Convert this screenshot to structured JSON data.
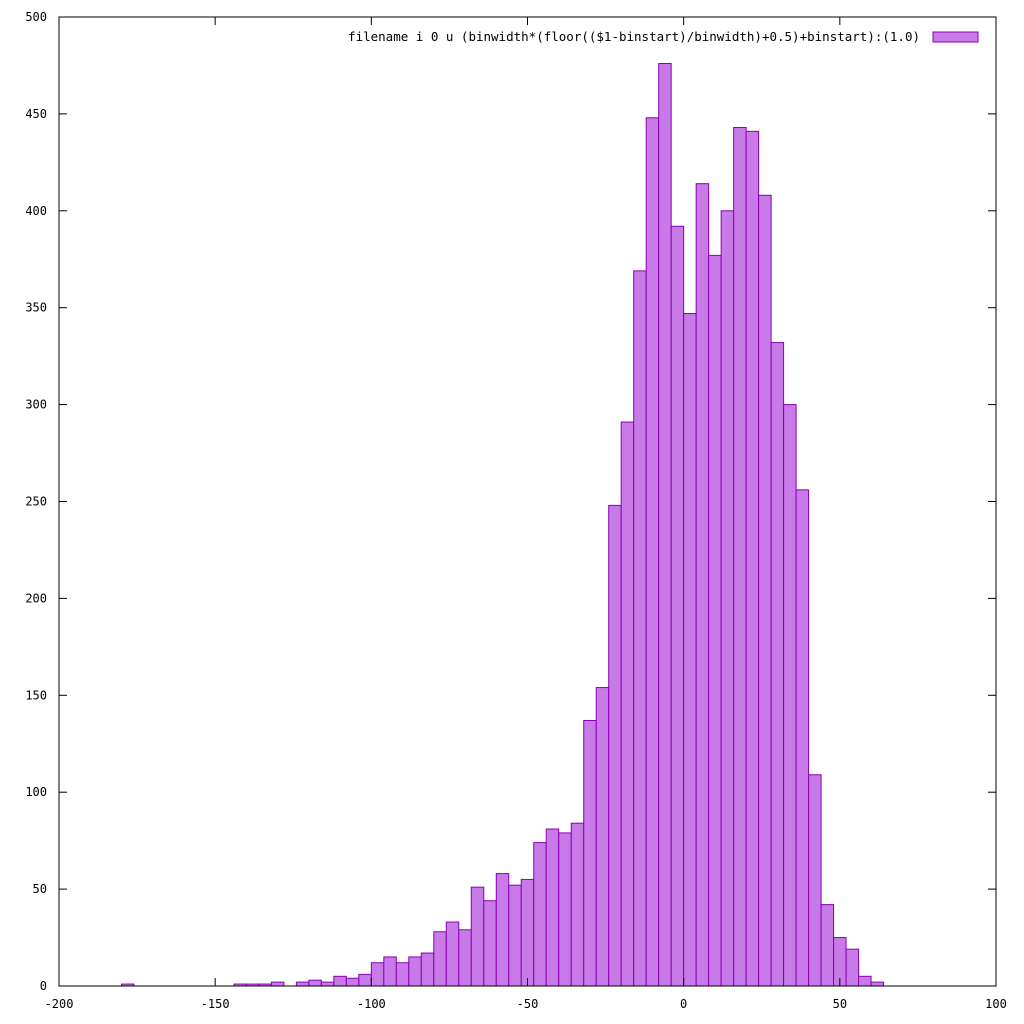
{
  "chart_data": {
    "type": "bar",
    "xlim": [
      -200,
      100
    ],
    "ylim": [
      0,
      500
    ],
    "x_ticks": [
      -200,
      -150,
      -100,
      -50,
      0,
      50,
      100
    ],
    "y_ticks": [
      0,
      50,
      100,
      150,
      200,
      250,
      300,
      350,
      400,
      450,
      500
    ],
    "grid": false,
    "bin_width": 4,
    "legend": {
      "position": "top-right",
      "label": "filename i 0 u (binwidth*(floor(($1-binstart)/binwidth)+0.5)+binstart):(1.0)"
    },
    "colors": {
      "fill": "#c77ae8",
      "stroke": "#8b00b0",
      "axis": "#000000"
    },
    "bins": [
      {
        "x": -178,
        "y": 1
      },
      {
        "x": -142,
        "y": 1
      },
      {
        "x": -138,
        "y": 1
      },
      {
        "x": -134,
        "y": 1
      },
      {
        "x": -130,
        "y": 2
      },
      {
        "x": -122,
        "y": 2
      },
      {
        "x": -118,
        "y": 3
      },
      {
        "x": -114,
        "y": 2
      },
      {
        "x": -110,
        "y": 5
      },
      {
        "x": -106,
        "y": 4
      },
      {
        "x": -102,
        "y": 6
      },
      {
        "x": -98,
        "y": 12
      },
      {
        "x": -94,
        "y": 15
      },
      {
        "x": -90,
        "y": 12
      },
      {
        "x": -86,
        "y": 15
      },
      {
        "x": -82,
        "y": 17
      },
      {
        "x": -78,
        "y": 28
      },
      {
        "x": -74,
        "y": 33
      },
      {
        "x": -70,
        "y": 29
      },
      {
        "x": -66,
        "y": 51
      },
      {
        "x": -62,
        "y": 44
      },
      {
        "x": -58,
        "y": 58
      },
      {
        "x": -54,
        "y": 52
      },
      {
        "x": -50,
        "y": 55
      },
      {
        "x": -46,
        "y": 74
      },
      {
        "x": -42,
        "y": 81
      },
      {
        "x": -38,
        "y": 79
      },
      {
        "x": -34,
        "y": 84
      },
      {
        "x": -30,
        "y": 137
      },
      {
        "x": -26,
        "y": 154
      },
      {
        "x": -22,
        "y": 248
      },
      {
        "x": -18,
        "y": 291
      },
      {
        "x": -14,
        "y": 369
      },
      {
        "x": -10,
        "y": 448
      },
      {
        "x": -6,
        "y": 476
      },
      {
        "x": -2,
        "y": 392
      },
      {
        "x": 2,
        "y": 347
      },
      {
        "x": 6,
        "y": 414
      },
      {
        "x": 10,
        "y": 377
      },
      {
        "x": 14,
        "y": 400
      },
      {
        "x": 18,
        "y": 443
      },
      {
        "x": 22,
        "y": 441
      },
      {
        "x": 26,
        "y": 408
      },
      {
        "x": 30,
        "y": 332
      },
      {
        "x": 34,
        "y": 300
      },
      {
        "x": 38,
        "y": 256
      },
      {
        "x": 42,
        "y": 109
      },
      {
        "x": 46,
        "y": 42
      },
      {
        "x": 50,
        "y": 25
      },
      {
        "x": 54,
        "y": 19
      },
      {
        "x": 58,
        "y": 5
      },
      {
        "x": 62,
        "y": 2
      }
    ]
  }
}
